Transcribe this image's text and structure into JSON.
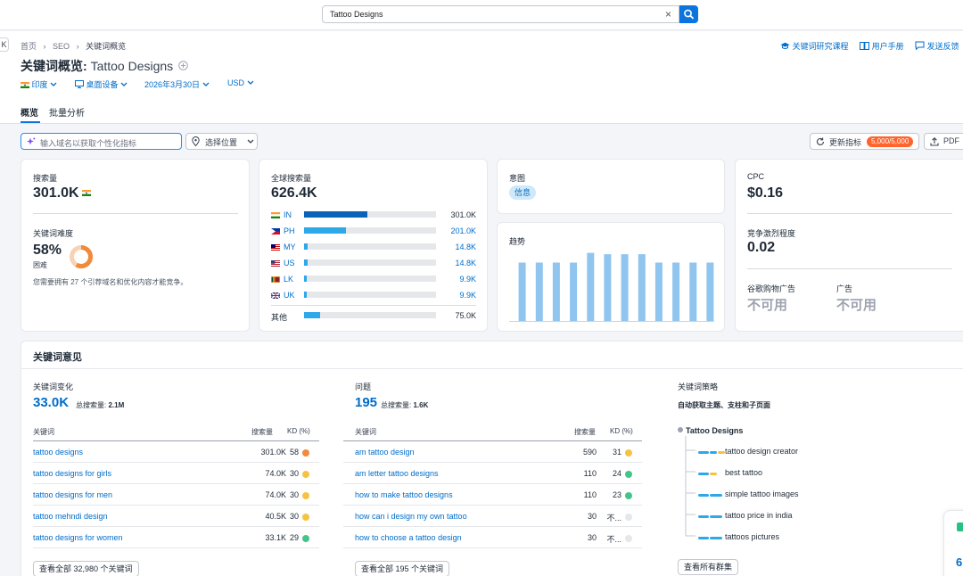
{
  "search": {
    "value": "Tattoo Designs",
    "clear": "×"
  },
  "collapse_glyph": "K",
  "breadcrumb": {
    "home": "首页",
    "seo": "SEO",
    "current": "关键词概览",
    "sep": "›"
  },
  "header_links": {
    "course": "关键词研究课程",
    "manual": "用户手册",
    "feedback": "发送反馈"
  },
  "title": {
    "prefix": "关键词概览:",
    "keyword": "Tattoo Designs"
  },
  "filters": {
    "country": "印度",
    "device": "桌面设备",
    "date": "2026年3月30日",
    "currency": "USD"
  },
  "tabs": {
    "overview": "概览",
    "bulk": "批量分析"
  },
  "toolbar": {
    "domain_placeholder": "输入域名以获取个性化指标",
    "location": "选择位置",
    "update": "更新指标",
    "quota": "5,000/5,000",
    "pdf": "PDF"
  },
  "volume_card": {
    "label": "搜索量",
    "value": "301.0K",
    "kd_label": "关键词难度",
    "kd_value": "58%",
    "kd_level": "困难",
    "kd_percent": 58,
    "note": "您需要拥有 27 个引荐域名和优化内容才能竞争。"
  },
  "global_card": {
    "label": "全球搜索量",
    "value": "626.4K",
    "rows": [
      {
        "code": "IN",
        "value": "301.0K",
        "share": 0.48,
        "color": "#0b63b8",
        "link": false
      },
      {
        "code": "PH",
        "value": "201.0K",
        "share": 0.32,
        "color": "#2fa8ea",
        "link": true
      },
      {
        "code": "MY",
        "value": "14.8K",
        "share": 0.024,
        "color": "#2fa8ea",
        "link": true
      },
      {
        "code": "US",
        "value": "14.8K",
        "share": 0.024,
        "color": "#2fa8ea",
        "link": true
      },
      {
        "code": "LK",
        "value": "9.9K",
        "share": 0.016,
        "color": "#2fa8ea",
        "link": true
      },
      {
        "code": "UK",
        "value": "9.9K",
        "share": 0.016,
        "color": "#2fa8ea",
        "link": true
      }
    ],
    "other_label": "其他",
    "other_value": "75.0K",
    "other_share": 0.12
  },
  "intent_card": {
    "label": "意图",
    "badge": "信息"
  },
  "trend_card": {
    "label": "趋势",
    "values": [
      0.84,
      0.84,
      0.84,
      0.84,
      0.98,
      0.96,
      0.96,
      0.96,
      0.84,
      0.84,
      0.84,
      0.84
    ]
  },
  "cpc_card": {
    "cpc_label": "CPC",
    "cpc_value": "$0.16",
    "comp_label": "竞争激烈程度",
    "comp_value": "0.02",
    "shopping_label": "谷歌购物广告",
    "shopping_value": "不可用",
    "ads_label": "广告",
    "ads_value": "不可用"
  },
  "ideas": {
    "title": "关键词意见",
    "variations": {
      "label": "关键词变化",
      "count": "33.0K",
      "total_label": "总搜索量:",
      "total_value": "2.1M",
      "col_kw": "关键词",
      "col_vol": "搜索量",
      "col_kd": "KD (%)",
      "rows": [
        {
          "kw": "tattoo designs",
          "vol": "301.0K",
          "kd": "58",
          "color": "#f08a3c"
        },
        {
          "kw": "tattoo designs for girls",
          "vol": "74.0K",
          "kd": "30",
          "color": "#f5c342"
        },
        {
          "kw": "tattoo designs for men",
          "vol": "74.0K",
          "kd": "30",
          "color": "#f5c342"
        },
        {
          "kw": "tattoo mehndi design",
          "vol": "40.5K",
          "kd": "30",
          "color": "#f5c342"
        },
        {
          "kw": "tattoo designs for women",
          "vol": "33.1K",
          "kd": "29",
          "color": "#45c48a"
        }
      ],
      "view_all": "查看全部 32,980 个关键词"
    },
    "questions": {
      "label": "问题",
      "count": "195",
      "total_label": "总搜索量:",
      "total_value": "1.6K",
      "col_kw": "关键词",
      "col_vol": "搜索量",
      "col_kd": "KD (%)",
      "rows": [
        {
          "kw": "am tattoo design",
          "vol": "590",
          "kd": "31",
          "color": "#f5c342"
        },
        {
          "kw": "am letter tattoo designs",
          "vol": "110",
          "kd": "24",
          "color": "#45c48a"
        },
        {
          "kw": "how to make tattoo designs",
          "vol": "110",
          "kd": "23",
          "color": "#45c48a"
        },
        {
          "kw": "how can i design my own tattoo",
          "vol": "30",
          "kd": "不...",
          "color": "#e5e7eb"
        },
        {
          "kw": "how to choose a tattoo design",
          "vol": "30",
          "kd": "不...",
          "color": "#e5e7eb"
        }
      ],
      "view_all": "查看全部 195 个关键词"
    },
    "strategy": {
      "label": "关键词策略",
      "desc": "自动获取主题、支柱和子页面",
      "root": "Tattoo Designs",
      "items": [
        {
          "label": "tattoo design creator",
          "colors": [
            "#2fa8ea",
            "#2fa8ea",
            "#f5c342"
          ]
        },
        {
          "label": "best tattoo",
          "colors": [
            "#2fa8ea",
            "#f5c342"
          ]
        },
        {
          "label": "simple tattoo images",
          "colors": [
            "#2fa8ea"
          ]
        },
        {
          "label": "tattoo price in india",
          "colors": [
            "#2fa8ea"
          ]
        },
        {
          "label": "tattoos pictures",
          "colors": [
            "#2fa8ea"
          ]
        }
      ],
      "view_all": "查看所有群集"
    }
  },
  "floating_widget": {
    "digit": "6"
  }
}
